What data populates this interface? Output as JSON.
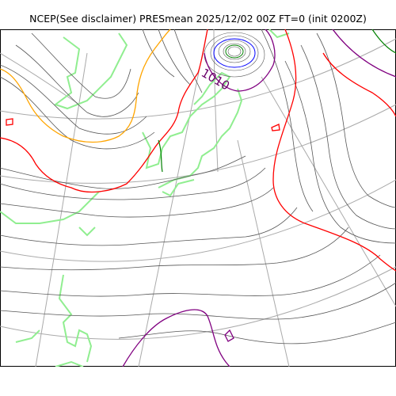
{
  "map": {
    "title": "NCEP(See disclaimer) PRESmean 2025/12/02 00Z FT=0 (init 0200Z)",
    "isobar_label": "1010"
  },
  "colors": {
    "background": "#ffffff",
    "coastline": "#90ee90",
    "graticule": "#aaaaaa",
    "isobar_regular": "#555555",
    "isobar_1012": "#ff0000",
    "isobar_1016": "#ffa500",
    "isobar_1020": "#008000",
    "isobar_1008": "#800080",
    "isobar_low": "#0000ff"
  },
  "icons": [
    "map-frame",
    "coastline",
    "isobar",
    "graticule"
  ]
}
